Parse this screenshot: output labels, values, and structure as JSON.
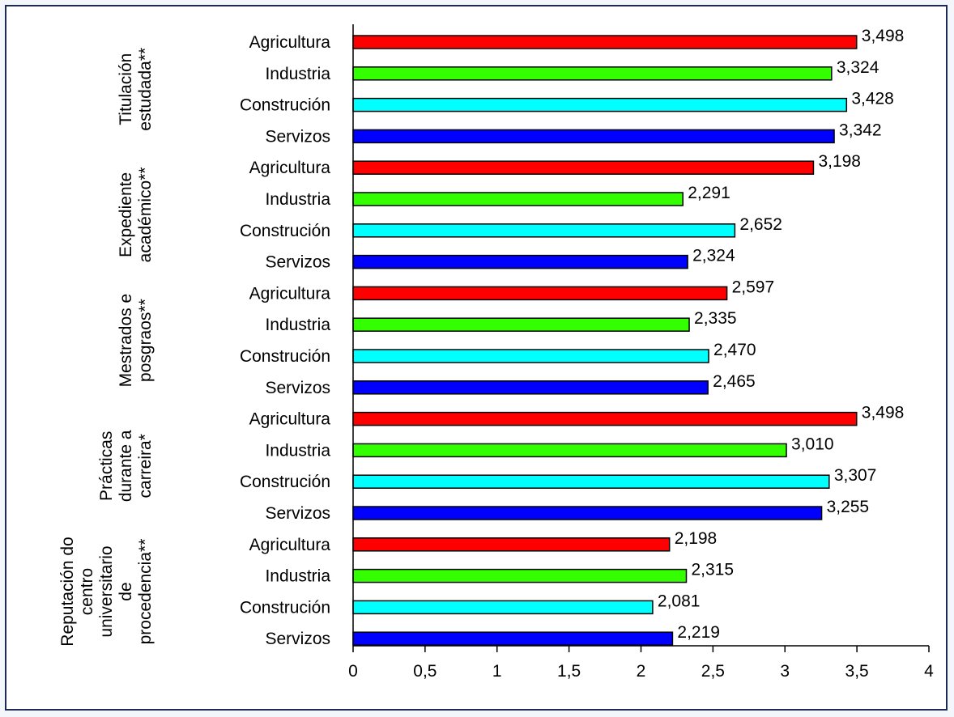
{
  "colors": {
    "Agricultura": "#ff0000",
    "Industria": "#33ff00",
    "Construción": "#00ffff",
    "Servizos": "#0000ff"
  },
  "chart_data": {
    "type": "bar",
    "orientation": "horizontal",
    "title": "",
    "xlabel": "",
    "ylabel": "",
    "xlim": [
      0,
      4
    ],
    "xticks": [
      "0",
      "0,5",
      "1",
      "1,5",
      "2",
      "2,5",
      "3",
      "3,5",
      "4"
    ],
    "grid": false,
    "legend": "none",
    "groups": [
      {
        "label_lines": [
          "Titulación",
          "estudada**"
        ],
        "bars": [
          {
            "category": "Agricultura",
            "value": 3.498,
            "label": "3,498"
          },
          {
            "category": "Industria",
            "value": 3.324,
            "label": "3,324"
          },
          {
            "category": "Construción",
            "value": 3.428,
            "label": "3,428"
          },
          {
            "category": "Servizos",
            "value": 3.342,
            "label": "3,342"
          }
        ]
      },
      {
        "label_lines": [
          "Expediente",
          "académico**"
        ],
        "bars": [
          {
            "category": "Agricultura",
            "value": 3.198,
            "label": "3,198"
          },
          {
            "category": "Industria",
            "value": 2.291,
            "label": "2,291"
          },
          {
            "category": "Construción",
            "value": 2.652,
            "label": "2,652"
          },
          {
            "category": "Servizos",
            "value": 2.324,
            "label": "2,324"
          }
        ]
      },
      {
        "label_lines": [
          "Mestrados e",
          "posgraos**"
        ],
        "bars": [
          {
            "category": "Agricultura",
            "value": 2.597,
            "label": "2,597"
          },
          {
            "category": "Industria",
            "value": 2.335,
            "label": "2,335"
          },
          {
            "category": "Construción",
            "value": 2.47,
            "label": "2,470"
          },
          {
            "category": "Servizos",
            "value": 2.465,
            "label": "2,465"
          }
        ]
      },
      {
        "label_lines": [
          "Prácticas",
          "durante a",
          "carreira*"
        ],
        "bars": [
          {
            "category": "Agricultura",
            "value": 3.498,
            "label": "3,498"
          },
          {
            "category": "Industria",
            "value": 3.01,
            "label": "3,010"
          },
          {
            "category": "Construción",
            "value": 3.307,
            "label": "3,307"
          },
          {
            "category": "Servizos",
            "value": 3.255,
            "label": "3,255"
          }
        ]
      },
      {
        "label_lines": [
          "Reputación do",
          "centro",
          "universitario",
          "de",
          "procedencia**"
        ],
        "bars": [
          {
            "category": "Agricultura",
            "value": 2.198,
            "label": "2,198"
          },
          {
            "category": "Industria",
            "value": 2.315,
            "label": "2,315"
          },
          {
            "category": "Construción",
            "value": 2.081,
            "label": "2,081"
          },
          {
            "category": "Servizos",
            "value": 2.219,
            "label": "2,219"
          }
        ]
      }
    ]
  }
}
